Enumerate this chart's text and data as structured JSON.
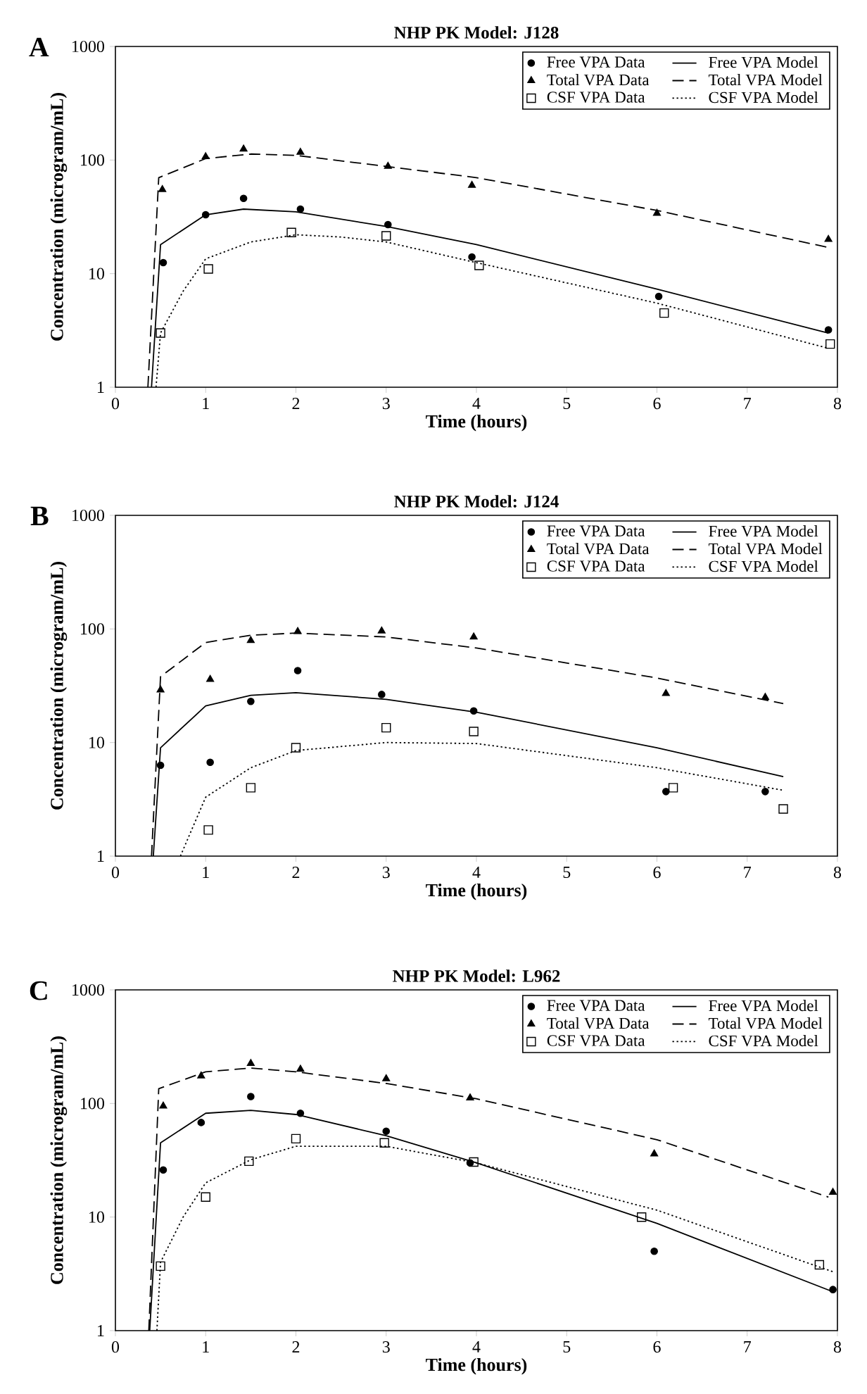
{
  "chart_data": [
    {
      "type": "scatter",
      "title": "NHP PK Model:  J128",
      "xlabel": "Time (hours)",
      "ylabel": "Concentration (microgram/mL)",
      "annotations": [
        "A"
      ],
      "xlim": [
        0,
        8
      ],
      "ylim": [
        1,
        1000
      ],
      "xticks": [
        0,
        1,
        2,
        3,
        4,
        5,
        6,
        7,
        8
      ],
      "yticks": [
        1,
        10,
        100,
        1000
      ],
      "log": "y",
      "legend": "top right",
      "series": [
        {
          "name": "Free VPA Data",
          "marker": "circle",
          "color": "#000000",
          "x": [
            0.53,
            1,
            1.42,
            2.05,
            3.02,
            3.95,
            6.02,
            7.9
          ],
          "values": [
            12.5,
            33,
            46,
            37,
            27,
            14,
            6.3,
            3.2
          ]
        },
        {
          "name": "Free VPA Model",
          "type": "line",
          "line_style": "solid",
          "color": "#000000",
          "x": [
            0.4,
            0.5,
            1,
            1.42,
            2,
            3,
            4,
            6,
            7.9
          ],
          "values": [
            1,
            18,
            33,
            37,
            35,
            26,
            18,
            7.3,
            3
          ]
        },
        {
          "name": "Total VPA Data",
          "marker": "triangle",
          "color": "#000000",
          "x": [
            0.52,
            1,
            1.42,
            2.05,
            3.02,
            3.95,
            6.0,
            7.9
          ],
          "values": [
            55,
            107,
            125,
            117,
            88,
            60,
            34,
            20
          ]
        },
        {
          "name": "Total VPA Model",
          "type": "line",
          "line_style": "dashed",
          "color": "#000000",
          "x": [
            0.36,
            0.48,
            1,
            1.5,
            2,
            3,
            4,
            6,
            7.9
          ],
          "values": [
            1,
            70,
            103,
            113,
            110,
            88,
            70,
            36,
            17
          ]
        },
        {
          "name": "CSF VPA Data",
          "marker": "square",
          "color": "#000000",
          "x": [
            0.5,
            1.03,
            1.95,
            3,
            4.03,
            6.08,
            7.92
          ],
          "values": [
            3,
            11,
            23,
            21.5,
            11.8,
            4.5,
            2.4
          ]
        },
        {
          "name": "CSF VPA Model",
          "type": "line",
          "line_style": "dotted",
          "color": "#000000",
          "x": [
            0.45,
            0.5,
            0.75,
            1,
            1.5,
            2,
            2.5,
            3,
            4,
            6,
            7.9
          ],
          "values": [
            1,
            3,
            7,
            13.5,
            19,
            22,
            21,
            19,
            12.5,
            5.5,
            2.2
          ]
        }
      ]
    },
    {
      "type": "scatter",
      "title": "NHP PK Model:  J124",
      "xlabel": "Time (hours)",
      "ylabel": "Concentration (microgram/mL)",
      "annotations": [
        "B"
      ],
      "xlim": [
        0,
        8
      ],
      "ylim": [
        1,
        1000
      ],
      "xticks": [
        0,
        1,
        2,
        3,
        4,
        5,
        6,
        7,
        8
      ],
      "yticks": [
        1,
        10,
        100,
        1000
      ],
      "log": "y",
      "legend": "top right",
      "series": [
        {
          "name": "Free VPA Data",
          "marker": "circle",
          "color": "#000000",
          "x": [
            0.5,
            1.05,
            1.5,
            2.02,
            2.95,
            3.97,
            6.1,
            7.2
          ],
          "values": [
            6.3,
            6.7,
            23,
            43,
            26.5,
            19,
            3.7,
            3.7
          ]
        },
        {
          "name": "Free VPA Model",
          "type": "line",
          "line_style": "solid",
          "color": "#000000",
          "x": [
            0.42,
            0.5,
            1,
            1.5,
            2,
            3,
            4,
            6,
            7.4
          ],
          "values": [
            1,
            9,
            21,
            26,
            27.5,
            24,
            18.5,
            9,
            5
          ]
        },
        {
          "name": "Total VPA Data",
          "marker": "triangle",
          "color": "#000000",
          "x": [
            0.5,
            1.05,
            1.5,
            2.02,
            2.95,
            3.97,
            6.1,
            7.2
          ],
          "values": [
            29,
            36,
            79,
            95,
            96,
            85,
            27,
            25
          ]
        },
        {
          "name": "Total VPA Model",
          "type": "line",
          "line_style": "dashed",
          "color": "#000000",
          "x": [
            0.4,
            0.5,
            1,
            1.5,
            2,
            3,
            4,
            6,
            7.4
          ],
          "values": [
            1,
            38,
            76,
            88,
            92,
            85,
            68,
            37,
            22
          ]
        },
        {
          "name": "CSF VPA Data",
          "marker": "square",
          "color": "#000000",
          "x": [
            1.03,
            1.5,
            2,
            3,
            3.97,
            6.18,
            7.4
          ],
          "values": [
            1.7,
            4,
            9,
            13.5,
            12.5,
            4,
            2.6
          ]
        },
        {
          "name": "CSF VPA Model",
          "type": "line",
          "line_style": "dotted",
          "color": "#000000",
          "x": [
            0.72,
            1,
            1.5,
            2,
            3,
            4,
            6,
            7.4
          ],
          "values": [
            1,
            3.3,
            6,
            8.5,
            10,
            9.8,
            6,
            3.8
          ]
        }
      ]
    },
    {
      "type": "scatter",
      "title": "NHP PK Model:  L962",
      "xlabel": "Time (hours)",
      "ylabel": "Concentration (microgram/mL)",
      "annotations": [
        "C"
      ],
      "xlim": [
        0,
        8
      ],
      "ylim": [
        1,
        1000
      ],
      "xticks": [
        0,
        1,
        2,
        3,
        4,
        5,
        6,
        7,
        8
      ],
      "yticks": [
        1,
        10,
        100,
        1000
      ],
      "log": "y",
      "legend": "top right",
      "series": [
        {
          "name": "Free VPA Data",
          "marker": "circle",
          "color": "#000000",
          "x": [
            0.53,
            0.95,
            1.5,
            2.05,
            3,
            3.93,
            5.97,
            7.95
          ],
          "values": [
            26,
            68,
            115,
            82,
            57,
            30,
            5,
            2.3
          ]
        },
        {
          "name": "Free VPA Model",
          "type": "line",
          "line_style": "solid",
          "color": "#000000",
          "x": [
            0.38,
            0.5,
            1,
            1.5,
            2,
            3,
            4,
            6,
            7.95
          ],
          "values": [
            1,
            45,
            82,
            87,
            80,
            52,
            30,
            8.8,
            2.2
          ]
        },
        {
          "name": "Total VPA Data",
          "marker": "triangle",
          "color": "#000000",
          "x": [
            0.53,
            0.95,
            1.5,
            2.05,
            3,
            3.93,
            5.97,
            7.95
          ],
          "values": [
            95,
            175,
            225,
            200,
            165,
            112,
            36,
            16.5
          ]
        },
        {
          "name": "Total VPA Model",
          "type": "line",
          "line_style": "dashed",
          "color": "#000000",
          "x": [
            0.37,
            0.48,
            1,
            1.5,
            2,
            3,
            4,
            6,
            7.9
          ],
          "values": [
            1,
            135,
            190,
            205,
            190,
            150,
            110,
            48,
            15
          ]
        },
        {
          "name": "CSF VPA Data",
          "marker": "square",
          "color": "#000000",
          "x": [
            0.5,
            1,
            1.48,
            2,
            2.98,
            3.97,
            5.83,
            7.8
          ],
          "values": [
            3.7,
            15,
            31,
            49,
            45,
            30.5,
            10,
            3.8
          ]
        },
        {
          "name": "CSF VPA Model",
          "type": "line",
          "line_style": "dotted",
          "color": "#000000",
          "x": [
            0.46,
            0.5,
            0.75,
            1,
            1.5,
            2,
            3,
            4,
            6,
            7.95
          ],
          "values": [
            1,
            4,
            10,
            20,
            32,
            42,
            42,
            30,
            11.5,
            3.3
          ]
        }
      ]
    }
  ]
}
